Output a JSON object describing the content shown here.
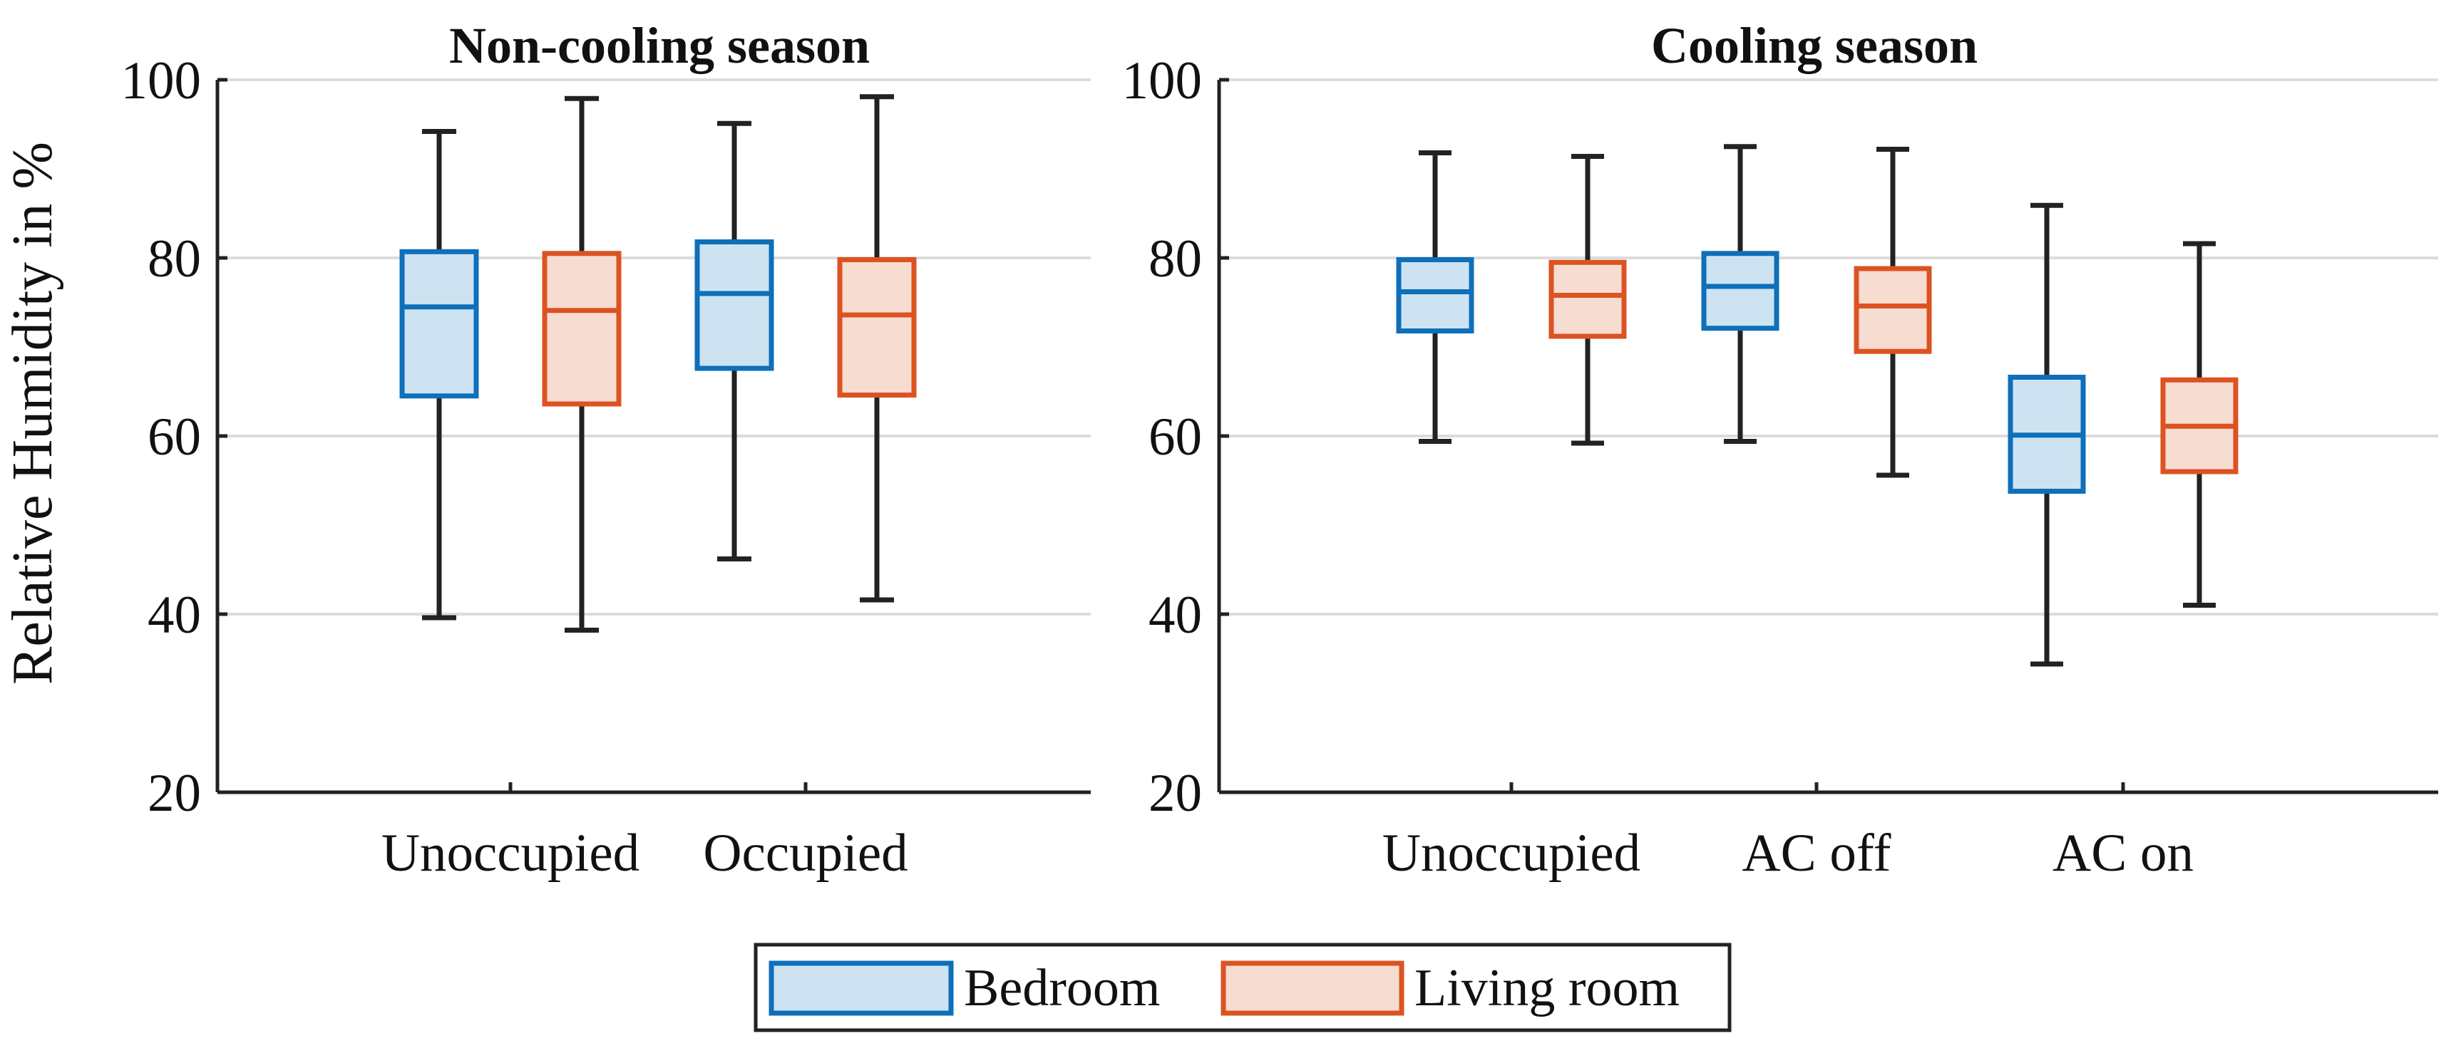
{
  "colors": {
    "bedroom_stroke": "#0e6fba",
    "bedroom_fill": "#cde3f1",
    "living_stroke": "#dc5322",
    "living_fill": "#f7dcd2"
  },
  "y_axis_label": "Relative Humidity in %",
  "legend": [
    "Bedroom",
    "Living room"
  ],
  "chart_data": [
    {
      "type": "box",
      "title": "Non-cooling season",
      "categories": [
        "Unoccupied",
        "Occupied"
      ],
      "ylim": [
        20,
        100
      ],
      "yticks": [
        "20",
        "40",
        "60",
        "80",
        "100"
      ],
      "series": [
        {
          "name": "Bedroom",
          "boxes": [
            {
              "category": "Unoccupied",
              "min": 39.6,
              "q1": 64.5,
              "median": 74.5,
              "q3": 80.7,
              "max": 94.2
            },
            {
              "category": "Occupied",
              "min": 46.2,
              "q1": 67.6,
              "median": 76.0,
              "q3": 81.8,
              "max": 95.1
            }
          ]
        },
        {
          "name": "Living room",
          "boxes": [
            {
              "category": "Unoccupied",
              "min": 38.2,
              "q1": 63.6,
              "median": 74.1,
              "q3": 80.5,
              "max": 97.9
            },
            {
              "category": "Occupied",
              "min": 41.6,
              "q1": 64.6,
              "median": 73.6,
              "q3": 79.8,
              "max": 98.1
            }
          ]
        }
      ]
    },
    {
      "type": "box",
      "title": "Cooling season",
      "categories": [
        "Unoccupied",
        "AC off",
        "AC on"
      ],
      "ylim": [
        20,
        100
      ],
      "yticks": [
        "20",
        "40",
        "60",
        "80",
        "100"
      ],
      "series": [
        {
          "name": "Bedroom",
          "boxes": [
            {
              "category": "Unoccupied",
              "min": 59.4,
              "q1": 71.8,
              "median": 76.2,
              "q3": 79.8,
              "max": 91.8
            },
            {
              "category": "AC off",
              "min": 59.4,
              "q1": 72.1,
              "median": 76.8,
              "q3": 80.5,
              "max": 92.5
            },
            {
              "category": "AC on",
              "min": 34.4,
              "q1": 53.8,
              "median": 60.1,
              "q3": 66.6,
              "max": 85.9
            }
          ]
        },
        {
          "name": "Living room",
          "boxes": [
            {
              "category": "Unoccupied",
              "min": 59.2,
              "q1": 71.2,
              "median": 75.8,
              "q3": 79.5,
              "max": 91.4
            },
            {
              "category": "AC off",
              "min": 55.6,
              "q1": 69.5,
              "median": 74.6,
              "q3": 78.8,
              "max": 92.2
            },
            {
              "category": "AC on",
              "min": 41.0,
              "q1": 56.0,
              "median": 61.1,
              "q3": 66.3,
              "max": 81.6
            }
          ]
        }
      ]
    }
  ]
}
